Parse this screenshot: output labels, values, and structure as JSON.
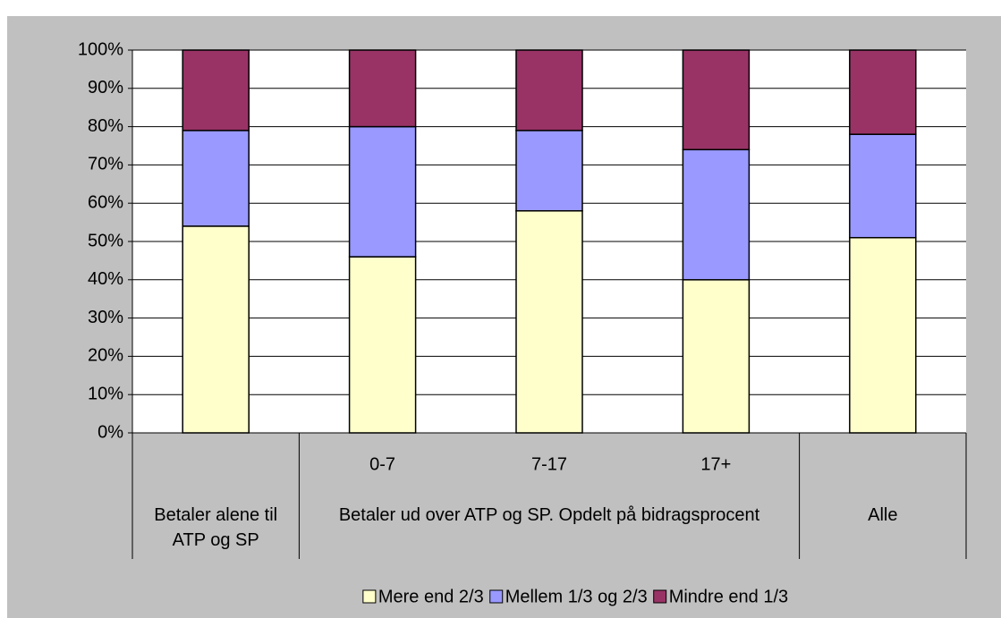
{
  "chart_data": {
    "type": "stacked_bar",
    "categories": [
      null,
      "0-7",
      "7-17",
      "17+",
      null
    ],
    "category_groups": [
      {
        "label": "Betaler alene til ATP og SP",
        "span": 1
      },
      {
        "label": "Betaler ud over ATP og SP. Opdelt på bidragsprocent",
        "span": 3
      },
      {
        "label": "Alle",
        "span": 1
      }
    ],
    "series": [
      {
        "name": "Mere end 2/3",
        "color": "#ffffcc",
        "values": [
          54,
          46,
          58,
          40,
          51
        ]
      },
      {
        "name": "Mellem 1/3 og 2/3",
        "color": "#9999ff",
        "values": [
          25,
          34,
          21,
          34,
          27
        ]
      },
      {
        "name": "Mindre end 1/3",
        "color": "#993366",
        "values": [
          21,
          20,
          21,
          26,
          22
        ]
      }
    ],
    "ylim": [
      0,
      100
    ],
    "yticks": [
      {
        "value": 0,
        "label": "0%"
      },
      {
        "value": 10,
        "label": "10%"
      },
      {
        "value": 20,
        "label": "20%"
      },
      {
        "value": 30,
        "label": "30%"
      },
      {
        "value": 40,
        "label": "40%"
      },
      {
        "value": 50,
        "label": "50%"
      },
      {
        "value": 60,
        "label": "60%"
      },
      {
        "value": 70,
        "label": "70%"
      },
      {
        "value": 80,
        "label": "80%"
      },
      {
        "value": 90,
        "label": "90%"
      },
      {
        "value": 100,
        "label": "100%"
      }
    ],
    "grid": true,
    "legend": "bottom"
  }
}
